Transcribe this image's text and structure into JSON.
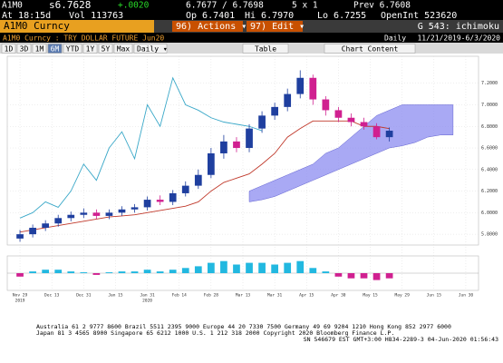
{
  "header": {
    "row1": [
      "A1M0",
      "s6.7628",
      "+.0020",
      "6.7677 / 6.7698",
      "5 x 1",
      "Prev 6.7608"
    ],
    "row2": [
      "At 18:15d",
      "Vol 113763",
      "Op 6.7401",
      "Hi 6.7970",
      "Lo 6.7255",
      "OpenInt 523620"
    ],
    "security_bar": {
      "ticker": "A1M0 Curncy",
      "actions": "96) Actions ▾",
      "edit": "97) Edit ▾",
      "page": "G 543: ichimoku"
    },
    "title_bar": {
      "name": "A1M0 Curncy : TRY DOLLAR FUTURE Jun20",
      "period": "Daily",
      "range": "11/21/2019-6/3/2020"
    },
    "toolbar": {
      "buttons": [
        "1D",
        "3D",
        "1M",
        "6M",
        "YTD",
        "1Y",
        "5Y",
        "Max"
      ],
      "frequency": "Daily ▾",
      "table": "Table",
      "content": "Chart Content"
    }
  },
  "chart_data": {
    "type": "candlestick",
    "open": [
      5.76,
      5.8,
      5.86,
      5.9,
      5.95,
      5.98,
      6.0,
      5.97,
      6.0,
      6.03,
      6.05,
      6.12,
      6.1,
      6.18,
      6.25,
      6.35,
      6.55,
      6.66,
      6.6,
      6.78,
      6.9,
      6.98,
      7.1,
      7.25,
      7.05,
      6.95,
      6.88,
      6.84,
      6.8,
      6.7
    ],
    "high": [
      5.84,
      5.89,
      5.93,
      5.98,
      6.01,
      6.04,
      6.03,
      6.03,
      6.06,
      6.08,
      6.15,
      6.16,
      6.21,
      6.29,
      6.4,
      6.6,
      6.72,
      6.7,
      6.82,
      6.94,
      7.02,
      7.15,
      7.32,
      7.28,
      7.08,
      6.98,
      6.92,
      6.88,
      6.83,
      6.79
    ],
    "low": [
      5.73,
      5.77,
      5.83,
      5.87,
      5.92,
      5.95,
      5.94,
      5.94,
      5.97,
      6.0,
      6.02,
      6.07,
      6.07,
      6.15,
      6.22,
      6.32,
      6.5,
      6.56,
      6.56,
      6.74,
      6.86,
      6.94,
      7.06,
      7.0,
      6.9,
      6.84,
      6.8,
      6.77,
      6.68,
      6.66
    ],
    "close": [
      5.8,
      5.86,
      5.9,
      5.95,
      5.98,
      6.0,
      5.97,
      6.0,
      6.03,
      6.05,
      6.12,
      6.1,
      6.18,
      6.25,
      6.35,
      6.55,
      6.66,
      6.6,
      6.78,
      6.9,
      6.98,
      7.1,
      7.25,
      7.05,
      6.95,
      6.88,
      6.84,
      6.8,
      6.7,
      6.76
    ],
    "up_color": "#1f3f9f",
    "down_color": "#d02090",
    "lines": [
      {
        "color": "#c0392b",
        "values": [
          5.82,
          5.84,
          5.86,
          5.88,
          5.9,
          5.92,
          5.94,
          5.96,
          5.97,
          5.98,
          6.0,
          6.02,
          6.04,
          6.06,
          6.1,
          6.2,
          6.28,
          6.32,
          6.36,
          6.45,
          6.55,
          6.7,
          6.78,
          6.85,
          6.85,
          6.85,
          6.85,
          6.8,
          6.8,
          6.78
        ]
      },
      {
        "color": "#3aa8c8",
        "values": [
          5.95,
          6.0,
          6.1,
          6.05,
          6.2,
          6.45,
          6.3,
          6.6,
          6.75,
          6.5,
          7.0,
          6.8,
          7.25,
          7.0,
          6.95,
          6.88,
          6.84,
          6.82,
          6.8,
          6.76,
          null,
          null,
          null,
          null,
          null,
          null,
          null,
          null,
          null,
          null
        ]
      }
    ],
    "cloud": {
      "color": "#8c8cf0",
      "upper": [
        null,
        null,
        null,
        null,
        null,
        null,
        null,
        null,
        null,
        null,
        null,
        null,
        null,
        null,
        null,
        null,
        null,
        null,
        6.2,
        6.25,
        6.3,
        6.35,
        6.4,
        6.45,
        6.55,
        6.6,
        6.7,
        6.8,
        6.9,
        6.95,
        7.0,
        7.0,
        7.0,
        7.0,
        7.0
      ],
      "lower": [
        null,
        null,
        null,
        null,
        null,
        null,
        null,
        null,
        null,
        null,
        null,
        null,
        null,
        null,
        null,
        null,
        null,
        null,
        6.1,
        6.12,
        6.15,
        6.2,
        6.25,
        6.3,
        6.35,
        6.4,
        6.45,
        6.5,
        6.55,
        6.6,
        6.62,
        6.65,
        6.7,
        6.72,
        6.72
      ]
    },
    "xlim": [
      -1,
      36
    ],
    "ylim": [
      5.7,
      7.45
    ],
    "yticks": [
      {
        "value": 5.8,
        "label": "5.8000"
      },
      {
        "value": 6.0,
        "label": "6.0000"
      },
      {
        "value": 6.2,
        "label": "6.2000"
      },
      {
        "value": 6.4,
        "label": "6.4000"
      },
      {
        "value": 6.6,
        "label": "6.6000"
      },
      {
        "value": 6.8,
        "label": "6.8000"
      },
      {
        "value": 7.0,
        "label": "7.0000"
      },
      {
        "value": 7.2,
        "label": "7.2000"
      }
    ],
    "xticks": [
      {
        "value": 0,
        "label": "Nov 29"
      },
      {
        "value": 2.5,
        "label": "Dec 13"
      },
      {
        "value": 5,
        "label": "Dec 31"
      },
      {
        "value": 7.5,
        "label": "Jan 15"
      },
      {
        "value": 10,
        "label": "Jan 31"
      },
      {
        "value": 12.5,
        "label": "Feb 14"
      },
      {
        "value": 15,
        "label": "Feb 28"
      },
      {
        "value": 17.5,
        "label": "Mar 13"
      },
      {
        "value": 20,
        "label": "Mar 31"
      },
      {
        "value": 22.5,
        "label": "Apr 15"
      },
      {
        "value": 25,
        "label": "Apr 30"
      },
      {
        "value": 27.5,
        "label": "May 15"
      },
      {
        "value": 30,
        "label": "May 29"
      },
      {
        "value": 32.5,
        "label": "Jun 15"
      },
      {
        "value": 35,
        "label": "Jun 30"
      }
    ],
    "year_ticks": [
      {
        "value": 0,
        "label": "2019"
      },
      {
        "value": 10,
        "label": "2020"
      }
    ],
    "grid": true,
    "macd": {
      "values": [
        -0.02,
        0.01,
        0.02,
        0.02,
        0.01,
        0.005,
        -0.01,
        0.005,
        0.01,
        0.01,
        0.02,
        0.01,
        0.02,
        0.03,
        0.04,
        0.06,
        0.07,
        0.05,
        0.06,
        0.06,
        0.05,
        0.06,
        0.07,
        0.03,
        0.01,
        -0.02,
        -0.03,
        -0.03,
        -0.04,
        -0.03
      ],
      "ylim": [
        -0.1,
        0.1
      ],
      "pos_color": "#22b8e0",
      "neg_color": "#d02090"
    }
  },
  "footer": {
    "lines": [
      "Australia 61 2 9777 8600 Brazil 5511 2395 9000 Europe 44 20 7330 7500 Germany 49 69 9204 1210 Hong Kong 852 2977 6000",
      "Japan 81 3 4565 8900      Singapore 65 6212 1000      U.S. 1 212 318 2000      Copyright 2020 Bloomberg Finance L.P.",
      "SN 546679 EST  GMT+3:00 H834-2289-3 04-Jun-2020 01:56:43"
    ]
  }
}
